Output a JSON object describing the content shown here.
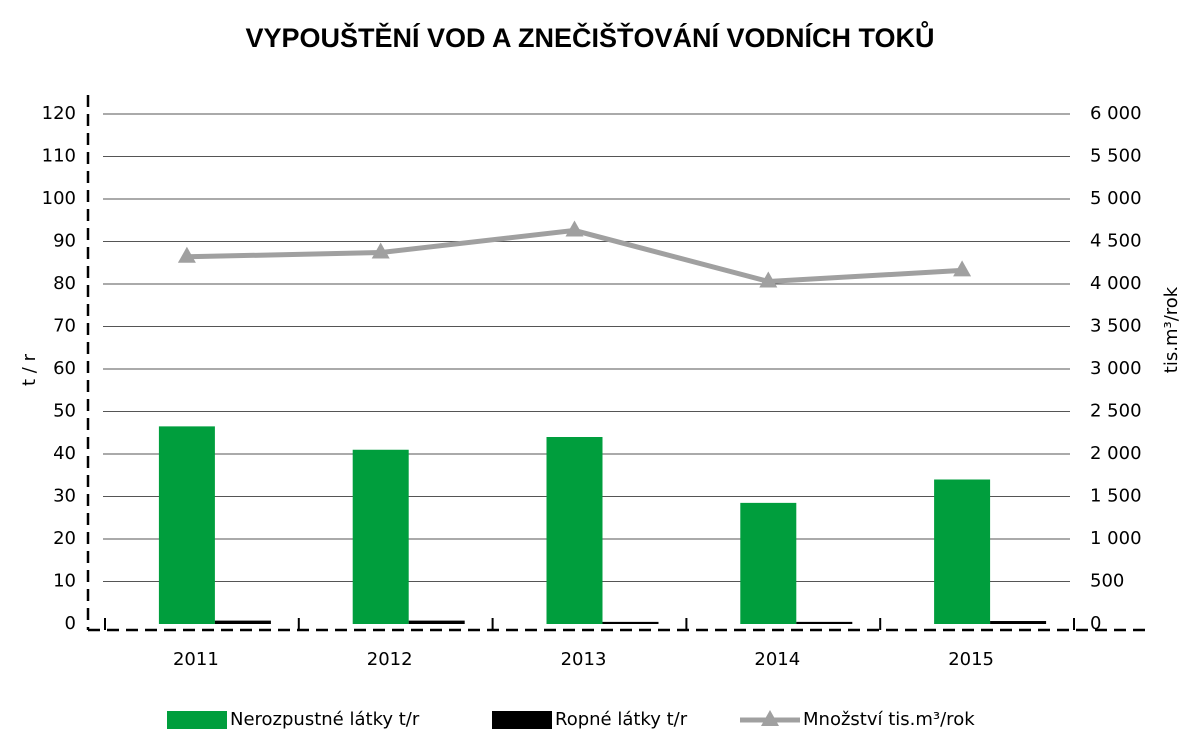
{
  "chart_data": {
    "type": "bar",
    "title": "VYPOUŠTĚNÍ VOD A ZNEČIŠŤOVÁNÍ VODNÍCH TOKŮ",
    "y_label": "t / r",
    "y2_label": "tis.m³/rok",
    "categories": [
      "2011",
      "2012",
      "2013",
      "2014",
      "2015"
    ],
    "series": [
      {
        "name": "Nerozpustné látky t/r",
        "type": "bar",
        "color": "#009e3d",
        "values": [
          46.5,
          41,
          44,
          28.5,
          34
        ]
      },
      {
        "name": "Ropné látky t/r",
        "type": "bar",
        "color": "#000000",
        "values": [
          0.8,
          0.8,
          0.5,
          0.5,
          0.7
        ]
      },
      {
        "name": "Množství tis.m³/rok",
        "type": "line",
        "axis": "y2",
        "color": "#a0a0a0",
        "values": [
          4320,
          4370,
          4630,
          4030,
          4160
        ]
      }
    ],
    "ylim": [
      0,
      120
    ],
    "yticks": [
      0,
      10,
      20,
      30,
      40,
      50,
      60,
      70,
      80,
      90,
      100,
      110,
      120
    ],
    "y2lim": [
      0,
      6000
    ],
    "y2ticks": [
      0,
      500,
      {
        "value": 1000,
        "label": "1 000"
      },
      {
        "value": 1500,
        "label": "1 500"
      },
      {
        "value": 2000,
        "label": "2 000"
      },
      {
        "value": 2500,
        "label": "2 500"
      },
      {
        "value": 3000,
        "label": "3 000"
      },
      {
        "value": 3500,
        "label": "3 500"
      },
      {
        "value": 4000,
        "label": "4 000"
      },
      {
        "value": 4500,
        "label": "4 500"
      },
      {
        "value": 5000,
        "label": "5 000"
      },
      {
        "value": 5500,
        "label": "5 500"
      },
      {
        "value": 6000,
        "label": "6 000"
      }
    ],
    "grid": true,
    "legend": "bottom"
  }
}
